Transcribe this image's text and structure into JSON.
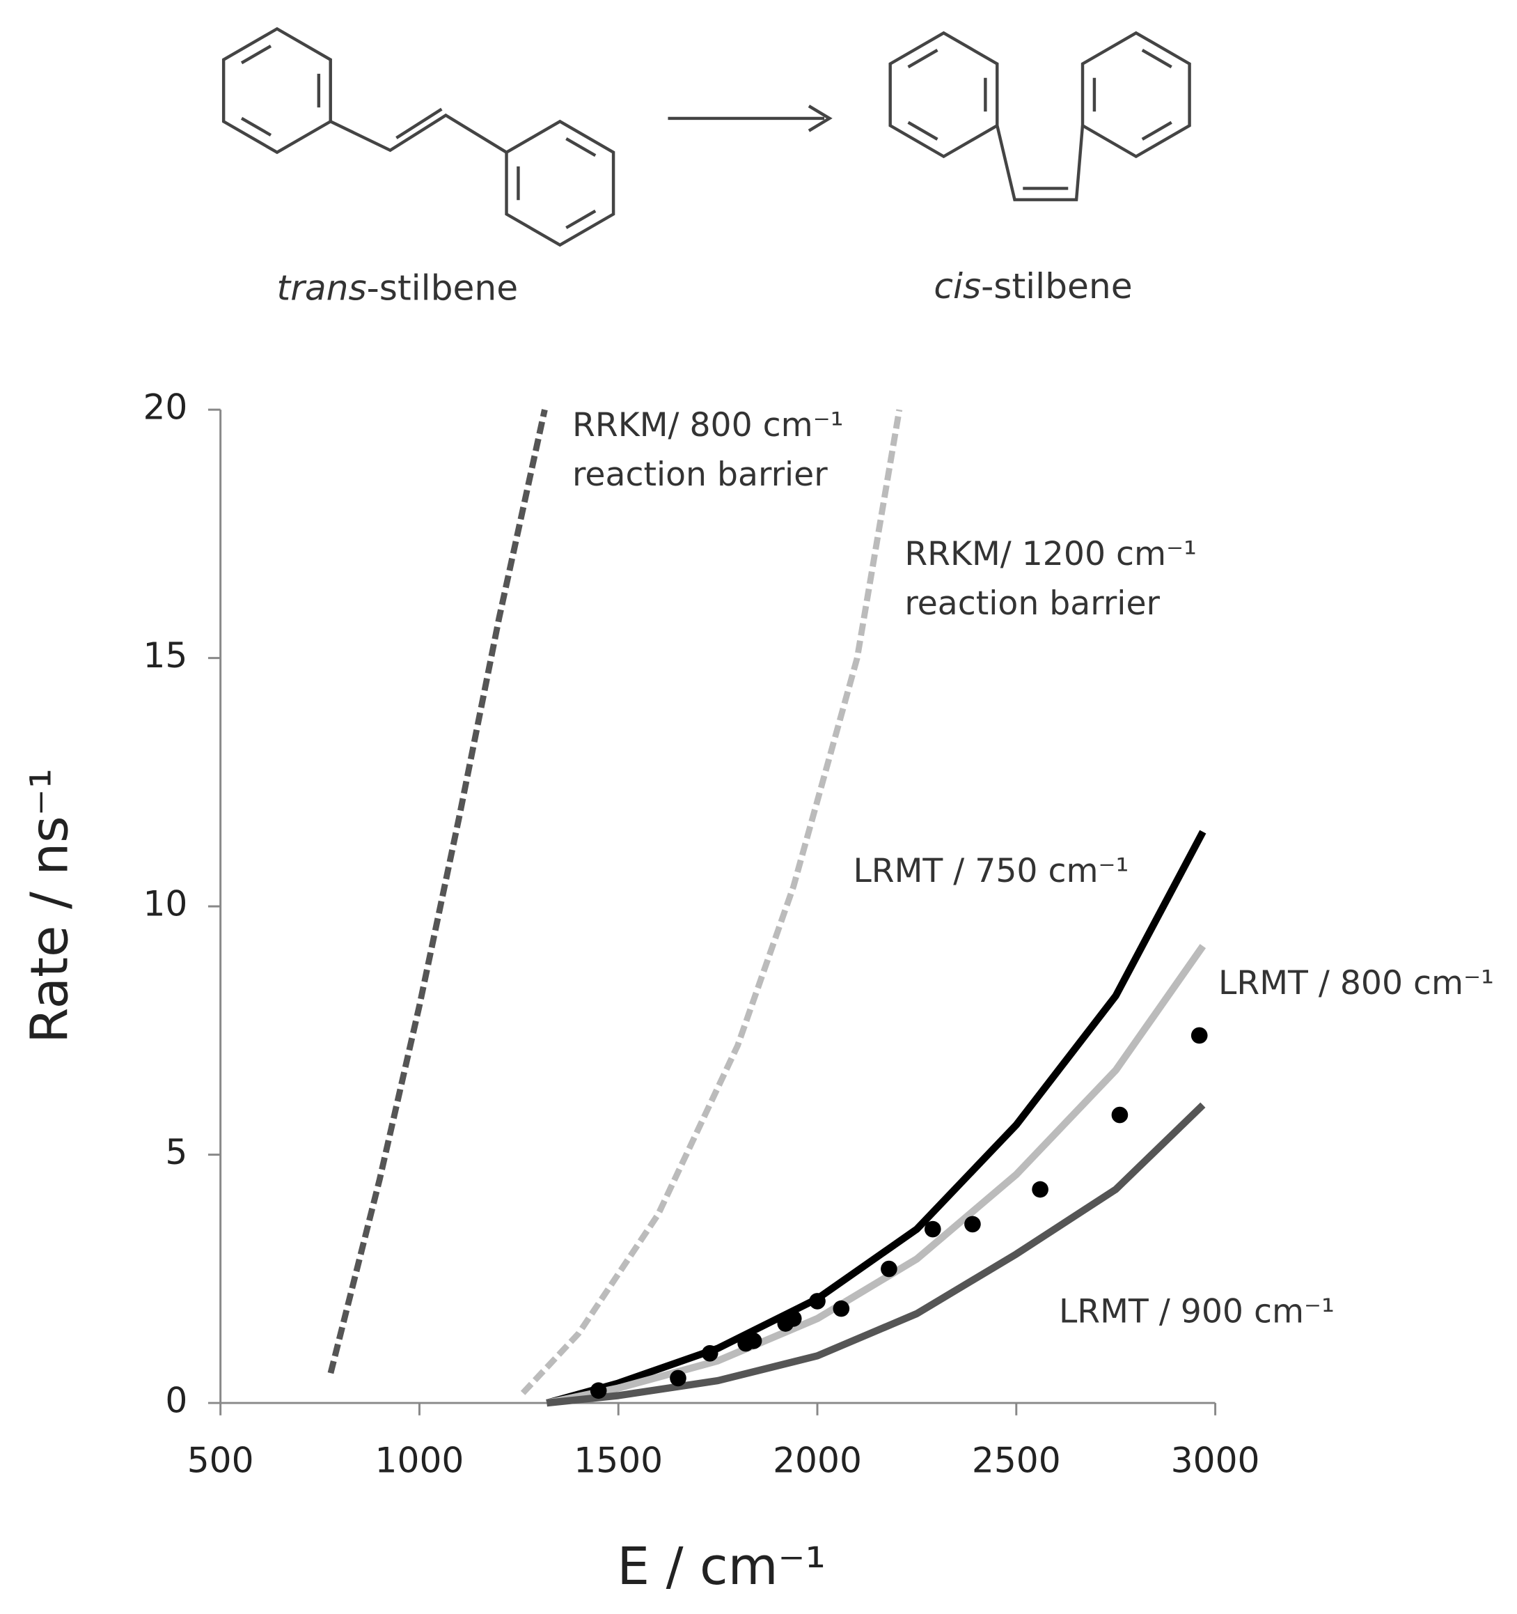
{
  "molecules": [
    {
      "prefix": "trans",
      "suffix": "-stilbene"
    },
    {
      "prefix": "cis",
      "suffix": "-stilbene"
    }
  ],
  "chart_data": {
    "type": "line",
    "x_label": "E / cm⁻¹",
    "y_label": "Rate / ns⁻¹",
    "xlim": [
      500,
      3000
    ],
    "xticks": [
      500,
      1000,
      1500,
      2000,
      2500,
      3000
    ],
    "ylim": [
      0,
      20
    ],
    "yticks": [
      0,
      5,
      10,
      15,
      20
    ],
    "series": [
      {
        "color": "#555555",
        "dashed": true,
        "mode": "line",
        "x": [
          777,
          900,
          1000,
          1100,
          1200,
          1315
        ],
        "values": [
          0.6,
          4.5,
          8,
          11.8,
          15.8,
          20
        ]
      },
      {
        "color": "#bbbbbb",
        "dashed": true,
        "mode": "line",
        "x": [
          1260,
          1400,
          1600,
          1800,
          1940,
          2100,
          2206
        ],
        "values": [
          0.2,
          1.4,
          3.8,
          7.2,
          10.4,
          15,
          20
        ]
      },
      {
        "color": "#000000",
        "dashed": false,
        "mode": "line",
        "x": [
          1320,
          1500,
          1750,
          2000,
          2250,
          2500,
          2750,
          2969
        ],
        "values": [
          0,
          0.4,
          1.1,
          2.1,
          3.5,
          5.6,
          8.2,
          11.5
        ]
      },
      {
        "color": "#bbbbbb",
        "dashed": false,
        "mode": "line",
        "x": [
          1320,
          1500,
          1750,
          2000,
          2250,
          2500,
          2750,
          2969
        ],
        "values": [
          0,
          0.3,
          0.85,
          1.7,
          2.9,
          4.6,
          6.7,
          9.2
        ]
      },
      {
        "color": "#555555",
        "dashed": false,
        "mode": "line",
        "x": [
          1320,
          1500,
          1750,
          2000,
          2250,
          2500,
          2750,
          2969
        ],
        "values": [
          0,
          0.15,
          0.45,
          0.95,
          1.8,
          3.0,
          4.3,
          6.0
        ]
      },
      {
        "color": "#000000",
        "dashed": false,
        "mode": "markers",
        "x": [
          1450,
          1650,
          1730,
          1820,
          1840,
          1920,
          1940,
          2000,
          2060,
          2180,
          2290,
          2390,
          2560,
          2760,
          2960
        ],
        "values": [
          0.25,
          0.5,
          1.0,
          1.2,
          1.25,
          1.6,
          1.7,
          2.05,
          1.9,
          2.7,
          3.5,
          3.6,
          4.3,
          5.8,
          7.4
        ]
      }
    ],
    "annotations": [
      {
        "lines": [
          "RRKM/ 800 cm⁻¹",
          "reaction barrier"
        ]
      },
      {
        "lines": [
          "RRKM/ 1200 cm⁻¹",
          "reaction barrier"
        ]
      },
      {
        "lines": [
          "LRMT / 750 cm⁻¹"
        ]
      },
      {
        "lines": [
          "LRMT / 800 cm⁻¹"
        ]
      },
      {
        "lines": [
          "LRMT / 900 cm⁻¹"
        ]
      }
    ]
  }
}
